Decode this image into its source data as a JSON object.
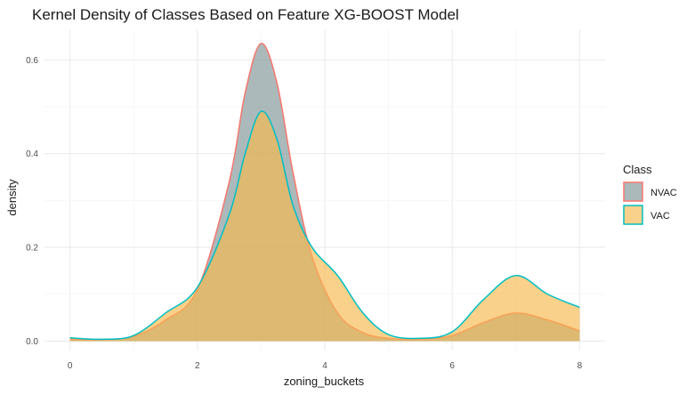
{
  "chart_data": {
    "type": "area",
    "title": "Kernel Density of Classes Based on Feature XG-BOOST Model",
    "xlabel": "zoning_buckets",
    "ylabel": "density",
    "xlim": [
      -0.4,
      8.4
    ],
    "ylim": [
      -0.02,
      0.665
    ],
    "x_ticks": [
      0,
      2,
      4,
      6,
      8
    ],
    "x_tick_labels": [
      "0",
      "2",
      "4",
      "6",
      "8"
    ],
    "y_ticks": [
      0.0,
      0.2,
      0.4,
      0.6
    ],
    "y_tick_labels": [
      "0.0",
      "0.2",
      "0.4",
      "0.6"
    ],
    "grid": true,
    "legend": {
      "title": "Class",
      "position": "right"
    },
    "series": [
      {
        "name": "NVAC",
        "fill": "#7f9496",
        "stroke": "#f8766d",
        "x": [
          0,
          0.5,
          1,
          1.5,
          2,
          2.5,
          2.75,
          3,
          3.25,
          3.5,
          3.8,
          4.2,
          4.6,
          5,
          5.5,
          6,
          6.5,
          7,
          7.5,
          8
        ],
        "y": [
          0.004,
          0.003,
          0.01,
          0.045,
          0.11,
          0.34,
          0.53,
          0.635,
          0.55,
          0.36,
          0.18,
          0.06,
          0.018,
          0.006,
          0.004,
          0.012,
          0.04,
          0.06,
          0.045,
          0.022
        ]
      },
      {
        "name": "VAC",
        "fill": "#f8b94c",
        "stroke": "#00bfc4",
        "x": [
          0,
          0.5,
          1,
          1.5,
          2,
          2.5,
          2.75,
          3,
          3.25,
          3.5,
          3.8,
          4.2,
          4.6,
          5,
          5.5,
          6,
          6.5,
          7,
          7.5,
          8
        ],
        "y": [
          0.007,
          0.004,
          0.012,
          0.06,
          0.115,
          0.27,
          0.4,
          0.49,
          0.43,
          0.29,
          0.2,
          0.14,
          0.06,
          0.014,
          0.006,
          0.02,
          0.09,
          0.14,
          0.1,
          0.072
        ]
      }
    ]
  }
}
